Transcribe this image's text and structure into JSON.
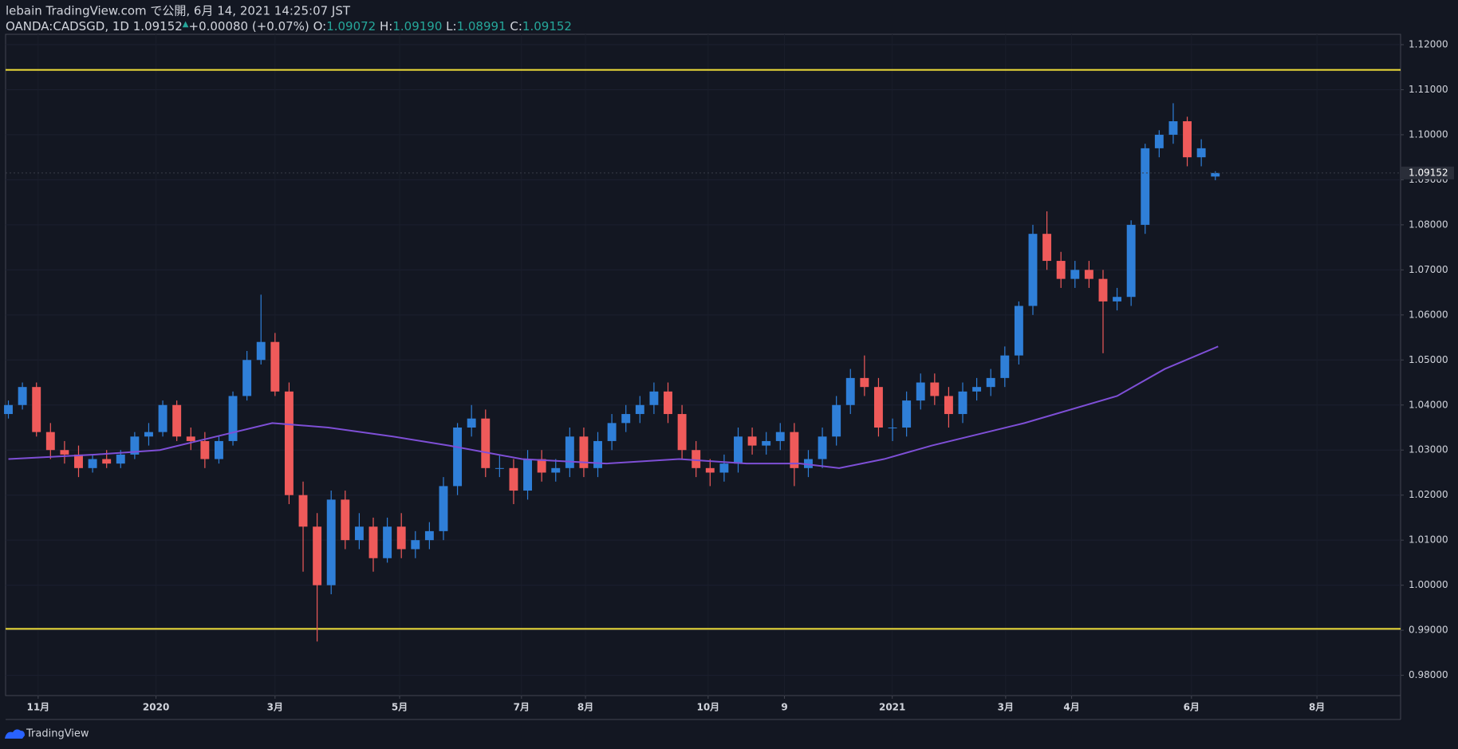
{
  "header": {
    "published": "lebain TradingView.com で公開, 6月 14, 2021 14:25:07 JST",
    "symbol": "OANDA:CADSGD, 1D",
    "price": "1.09152",
    "change": "+0.00080 (+0.07%)",
    "o_label": "O:",
    "o": "1.09072",
    "h_label": "H:",
    "h": "1.09190",
    "l_label": "L:",
    "l": "1.08991",
    "c_label": "C:",
    "c": "1.09152"
  },
  "footer": {
    "brand": "TradingView"
  },
  "chart_data": {
    "type": "candlestick",
    "x": [
      0,
      5,
      10,
      15,
      20,
      25,
      30,
      35,
      40,
      45,
      50,
      55,
      60,
      65,
      70,
      75,
      80,
      85,
      90,
      95,
      100,
      105,
      110,
      115,
      120,
      125,
      130,
      135,
      140,
      145,
      150,
      155,
      160,
      165,
      170,
      175,
      180,
      185,
      190,
      195,
      200,
      205,
      210,
      215,
      220,
      225,
      230,
      235,
      240,
      245,
      250,
      255,
      260,
      265,
      270,
      275,
      280,
      285,
      290,
      295,
      300,
      305,
      310,
      315,
      320,
      325,
      330,
      335,
      340,
      345,
      350,
      355,
      360,
      365,
      370,
      375,
      380,
      385,
      390,
      395,
      400,
      405,
      410,
      415,
      420,
      425,
      430
    ],
    "open": [
      1.038,
      1.04,
      1.044,
      1.034,
      1.03,
      1.029,
      1.026,
      1.028,
      1.027,
      1.029,
      1.033,
      1.034,
      1.04,
      1.033,
      1.032,
      1.028,
      1.032,
      1.042,
      1.05,
      1.054,
      1.043,
      1.02,
      1.013,
      1.0,
      1.019,
      1.01,
      1.013,
      1.006,
      1.013,
      1.008,
      1.01,
      1.012,
      1.022,
      1.035,
      1.037,
      1.026,
      1.026,
      1.021,
      1.028,
      1.025,
      1.026,
      1.033,
      1.026,
      1.032,
      1.036,
      1.038,
      1.04,
      1.043,
      1.038,
      1.03,
      1.026,
      1.025,
      1.027,
      1.033,
      1.031,
      1.032,
      1.034,
      1.026,
      1.028,
      1.033,
      1.04,
      1.046,
      1.044,
      1.035,
      1.035,
      1.041,
      1.045,
      1.042,
      1.038,
      1.043,
      1.044,
      1.046,
      1.051,
      1.062,
      1.078,
      1.072,
      1.068,
      1.07,
      1.068,
      1.063,
      1.064,
      1.08,
      1.097,
      1.1,
      1.103,
      1.095,
      1.09072
    ],
    "high": [
      1.041,
      1.045,
      1.045,
      1.036,
      1.032,
      1.031,
      1.029,
      1.03,
      1.03,
      1.034,
      1.036,
      1.041,
      1.041,
      1.035,
      1.034,
      1.033,
      1.043,
      1.052,
      1.0645,
      1.056,
      1.045,
      1.023,
      1.016,
      1.021,
      1.021,
      1.016,
      1.015,
      1.015,
      1.016,
      1.012,
      1.014,
      1.024,
      1.036,
      1.04,
      1.039,
      1.029,
      1.028,
      1.03,
      1.03,
      1.028,
      1.035,
      1.035,
      1.034,
      1.038,
      1.04,
      1.042,
      1.045,
      1.045,
      1.04,
      1.032,
      1.028,
      1.029,
      1.035,
      1.035,
      1.034,
      1.036,
      1.036,
      1.03,
      1.035,
      1.042,
      1.048,
      1.051,
      1.046,
      1.037,
      1.043,
      1.047,
      1.047,
      1.044,
      1.045,
      1.046,
      1.048,
      1.053,
      1.063,
      1.08,
      1.083,
      1.074,
      1.072,
      1.072,
      1.07,
      1.066,
      1.081,
      1.098,
      1.101,
      1.107,
      1.104,
      1.099,
      1.0919
    ],
    "low": [
      1.037,
      1.039,
      1.033,
      1.028,
      1.027,
      1.024,
      1.025,
      1.026,
      1.026,
      1.028,
      1.031,
      1.033,
      1.032,
      1.03,
      1.026,
      1.027,
      1.031,
      1.041,
      1.049,
      1.042,
      1.018,
      1.003,
      0.9875,
      0.998,
      1.008,
      1.008,
      1.003,
      1.005,
      1.006,
      1.006,
      1.008,
      1.01,
      1.02,
      1.033,
      1.024,
      1.024,
      1.018,
      1.019,
      1.023,
      1.023,
      1.024,
      1.024,
      1.024,
      1.03,
      1.034,
      1.036,
      1.038,
      1.036,
      1.028,
      1.024,
      1.022,
      1.023,
      1.025,
      1.029,
      1.029,
      1.03,
      1.022,
      1.024,
      1.026,
      1.031,
      1.038,
      1.042,
      1.033,
      1.032,
      1.033,
      1.039,
      1.04,
      1.035,
      1.036,
      1.041,
      1.042,
      1.044,
      1.049,
      1.06,
      1.07,
      1.066,
      1.066,
      1.066,
      1.0515,
      1.061,
      1.062,
      1.078,
      1.095,
      1.098,
      1.093,
      1.093,
      1.08991
    ],
    "close": [
      1.04,
      1.044,
      1.034,
      1.03,
      1.029,
      1.026,
      1.028,
      1.027,
      1.029,
      1.033,
      1.034,
      1.04,
      1.033,
      1.032,
      1.028,
      1.032,
      1.042,
      1.05,
      1.054,
      1.043,
      1.02,
      1.013,
      1.0,
      1.019,
      1.01,
      1.013,
      1.006,
      1.013,
      1.008,
      1.01,
      1.012,
      1.022,
      1.035,
      1.037,
      1.026,
      1.026,
      1.021,
      1.028,
      1.025,
      1.026,
      1.033,
      1.026,
      1.032,
      1.036,
      1.038,
      1.04,
      1.043,
      1.038,
      1.03,
      1.026,
      1.025,
      1.027,
      1.033,
      1.031,
      1.032,
      1.034,
      1.026,
      1.028,
      1.033,
      1.04,
      1.046,
      1.044,
      1.035,
      1.035,
      1.041,
      1.045,
      1.042,
      1.038,
      1.043,
      1.044,
      1.046,
      1.051,
      1.062,
      1.078,
      1.072,
      1.068,
      1.07,
      1.068,
      1.063,
      1.064,
      1.08,
      1.097,
      1.1,
      1.103,
      1.095,
      1.097,
      1.09152
    ],
    "up_color": "#2f7fd8",
    "down_color": "#ef5a5a",
    "moving_average": {
      "color": "#7e4fd6",
      "x": [
        0,
        31,
        54,
        74,
        94,
        114,
        137,
        157,
        183,
        213,
        239,
        263,
        282,
        296,
        312,
        329,
        362,
        395,
        412,
        431
      ],
      "values": [
        1.028,
        1.029,
        1.03,
        1.033,
        1.036,
        1.035,
        1.033,
        1.031,
        1.028,
        1.027,
        1.028,
        1.027,
        1.027,
        1.026,
        1.028,
        1.031,
        1.036,
        1.042,
        1.048,
        1.053
      ]
    },
    "hlines": [
      {
        "value": 1.1144,
        "color": "#f2e03a"
      },
      {
        "value": 0.9903,
        "color": "#f2e03a"
      }
    ],
    "price_label": {
      "value": 1.09152,
      "label": "1.09152"
    },
    "xlim": [
      -1,
      496
    ],
    "xticks": [
      {
        "value": 10.6,
        "label": "11月"
      },
      {
        "value": 52.6,
        "label": "2020"
      },
      {
        "value": 95,
        "label": "3月"
      },
      {
        "value": 139.4,
        "label": "5月"
      },
      {
        "value": 182.8,
        "label": "7月"
      },
      {
        "value": 205.6,
        "label": "8月"
      },
      {
        "value": 249.3,
        "label": "10月"
      },
      {
        "value": 276.5,
        "label": "9"
      },
      {
        "value": 314.9,
        "label": "2021"
      },
      {
        "value": 355.3,
        "label": "3月"
      },
      {
        "value": 378.8,
        "label": "4月"
      },
      {
        "value": 421.5,
        "label": "6月"
      },
      {
        "value": 466.2,
        "label": "8月"
      }
    ],
    "ylim": [
      0.9755,
      1.1223
    ],
    "yticks": [
      {
        "value": 0.98,
        "label": "0.98000"
      },
      {
        "value": 0.99,
        "label": "0.99000"
      },
      {
        "value": 1.0,
        "label": "1.00000"
      },
      {
        "value": 1.01,
        "label": "1.01000"
      },
      {
        "value": 1.02,
        "label": "1.02000"
      },
      {
        "value": 1.03,
        "label": "1.03000"
      },
      {
        "value": 1.04,
        "label": "1.04000"
      },
      {
        "value": 1.05,
        "label": "1.05000"
      },
      {
        "value": 1.06,
        "label": "1.06000"
      },
      {
        "value": 1.07,
        "label": "1.07000"
      },
      {
        "value": 1.08,
        "label": "1.08000"
      },
      {
        "value": 1.09,
        "label": "1.09000"
      },
      {
        "value": 1.1,
        "label": "1.10000"
      },
      {
        "value": 1.11,
        "label": "1.11000"
      },
      {
        "value": 1.12,
        "label": "1.12000"
      }
    ]
  }
}
